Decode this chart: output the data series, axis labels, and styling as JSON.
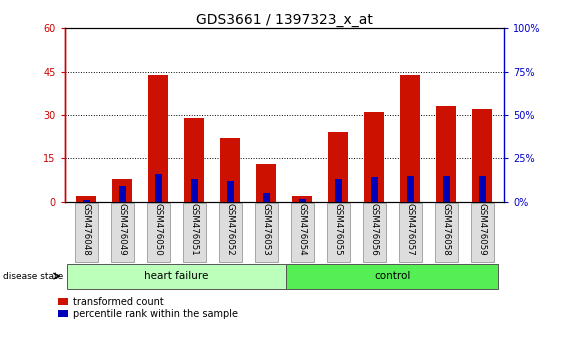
{
  "title": "GDS3661 / 1397323_x_at",
  "samples": [
    "GSM476048",
    "GSM476049",
    "GSM476050",
    "GSM476051",
    "GSM476052",
    "GSM476053",
    "GSM476054",
    "GSM476055",
    "GSM476056",
    "GSM476057",
    "GSM476058",
    "GSM476059"
  ],
  "red_values": [
    2,
    8,
    44,
    29,
    22,
    13,
    2,
    24,
    31,
    44,
    33,
    32
  ],
  "blue_values": [
    1,
    9,
    16,
    13,
    12,
    5,
    1.5,
    13,
    14,
    15,
    15,
    15
  ],
  "ylim_left": [
    0,
    60
  ],
  "ylim_right": [
    0,
    100
  ],
  "yticks_left": [
    0,
    15,
    30,
    45,
    60
  ],
  "yticks_right": [
    0,
    25,
    50,
    75,
    100
  ],
  "yticklabels_right": [
    "0%",
    "25%",
    "50%",
    "75%",
    "100%"
  ],
  "left_tick_color": "#cc0000",
  "right_tick_color": "#0000cc",
  "bar_color_red": "#cc1100",
  "bar_color_blue": "#0000bb",
  "bar_width": 0.55,
  "blue_bar_width": 0.18,
  "heart_failure_samples": 6,
  "control_samples": 6,
  "heart_failure_label": "heart failure",
  "control_label": "control",
  "disease_state_label": "disease state",
  "legend_red_label": "transformed count",
  "legend_blue_label": "percentile rank within the sample",
  "heart_failure_color": "#bbffbb",
  "control_color": "#55ee55",
  "background_color": "#ffffff",
  "plot_bg_color": "#ffffff",
  "xticklabel_bg": "#dddddd",
  "title_fontsize": 10,
  "tick_fontsize": 7,
  "label_fontsize": 7
}
